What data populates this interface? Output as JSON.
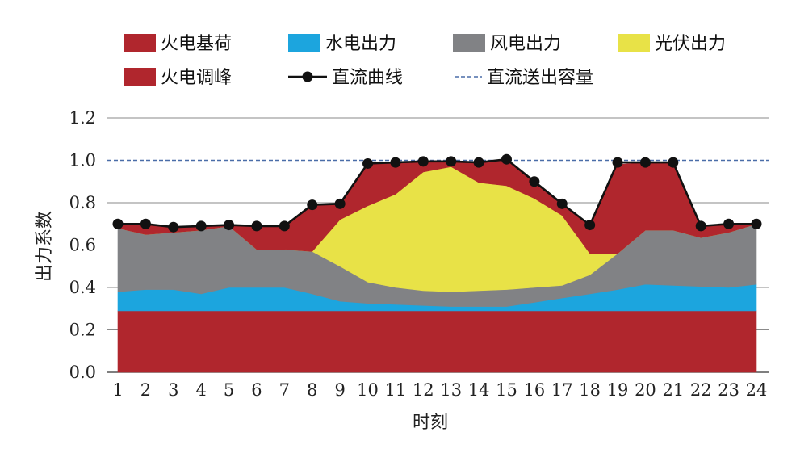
{
  "chart_data": {
    "type": "area",
    "xlabel": "时刻",
    "ylabel": "出力系数",
    "ylim": [
      0,
      1.2
    ],
    "yticks": [
      "0.0",
      "0.2",
      "0.4",
      "0.6",
      "0.8",
      "1.0",
      "1.2"
    ],
    "categories": [
      "1",
      "2",
      "3",
      "4",
      "5",
      "6",
      "7",
      "8",
      "9",
      "10",
      "11",
      "12",
      "13",
      "14",
      "15",
      "16",
      "17",
      "18",
      "19",
      "20",
      "21",
      "22",
      "23",
      "24"
    ],
    "x": [
      1,
      2,
      3,
      4,
      5,
      6,
      7,
      8,
      9,
      10,
      11,
      12,
      13,
      14,
      15,
      16,
      17,
      18,
      19,
      20,
      21,
      22,
      23,
      24
    ],
    "grid": true,
    "legend_position": "top",
    "series": [
      {
        "name": "火电基荷",
        "kind": "stacked-area",
        "color": "#b0262d",
        "values": [
          0.29,
          0.29,
          0.29,
          0.29,
          0.29,
          0.29,
          0.29,
          0.29,
          0.29,
          0.29,
          0.29,
          0.29,
          0.29,
          0.29,
          0.29,
          0.29,
          0.29,
          0.29,
          0.29,
          0.29,
          0.29,
          0.29,
          0.29,
          0.29
        ]
      },
      {
        "name": "水电出力",
        "kind": "stacked-area",
        "color": "#1ca5de",
        "values": [
          0.09,
          0.1,
          0.1,
          0.08,
          0.11,
          0.11,
          0.11,
          0.08,
          0.045,
          0.035,
          0.03,
          0.025,
          0.02,
          0.02,
          0.02,
          0.04,
          0.06,
          0.08,
          0.1,
          0.125,
          0.12,
          0.115,
          0.11,
          0.125
        ]
      },
      {
        "name": "风电出力",
        "kind": "stacked-area",
        "color": "#818285",
        "values": [
          0.3,
          0.26,
          0.27,
          0.3,
          0.29,
          0.18,
          0.18,
          0.2,
          0.165,
          0.1,
          0.08,
          0.07,
          0.07,
          0.075,
          0.08,
          0.07,
          0.06,
          0.09,
          0.17,
          0.255,
          0.26,
          0.23,
          0.26,
          0.285
        ]
      },
      {
        "name": "光伏出力",
        "kind": "stacked-area",
        "color": "#e8e247",
        "values": [
          0,
          0,
          0,
          0,
          0,
          0,
          0,
          0,
          0.22,
          0.36,
          0.44,
          0.56,
          0.59,
          0.51,
          0.49,
          0.42,
          0.33,
          0.1,
          0,
          0,
          0,
          0,
          0,
          0
        ]
      },
      {
        "name": "火电调峰",
        "kind": "stacked-area",
        "color": "#b0262d",
        "values": [
          0.02,
          0.05,
          0.02,
          0.02,
          0.0,
          0.115,
          0.11,
          0.225,
          0.075,
          0.2,
          0.15,
          0.055,
          0.02,
          0.09,
          0.13,
          0.08,
          0.05,
          0.13,
          0.42,
          0.32,
          0.32,
          0.055,
          0.035,
          0.0
        ]
      },
      {
        "name": "直流曲线",
        "kind": "line-markers",
        "color": "#111111",
        "values": [
          0.7,
          0.7,
          0.685,
          0.69,
          0.695,
          0.69,
          0.69,
          0.79,
          0.795,
          0.985,
          0.99,
          0.995,
          0.995,
          0.99,
          1.005,
          0.9,
          0.795,
          0.695,
          0.99,
          0.99,
          0.99,
          0.69,
          0.7,
          0.7
        ]
      },
      {
        "name": "直流送出容量",
        "kind": "dashed-line",
        "color": "#4a6da8",
        "values": [
          1,
          1,
          1,
          1,
          1,
          1,
          1,
          1,
          1,
          1,
          1,
          1,
          1,
          1,
          1,
          1,
          1,
          1,
          1,
          1,
          1,
          1,
          1,
          1
        ]
      }
    ]
  }
}
